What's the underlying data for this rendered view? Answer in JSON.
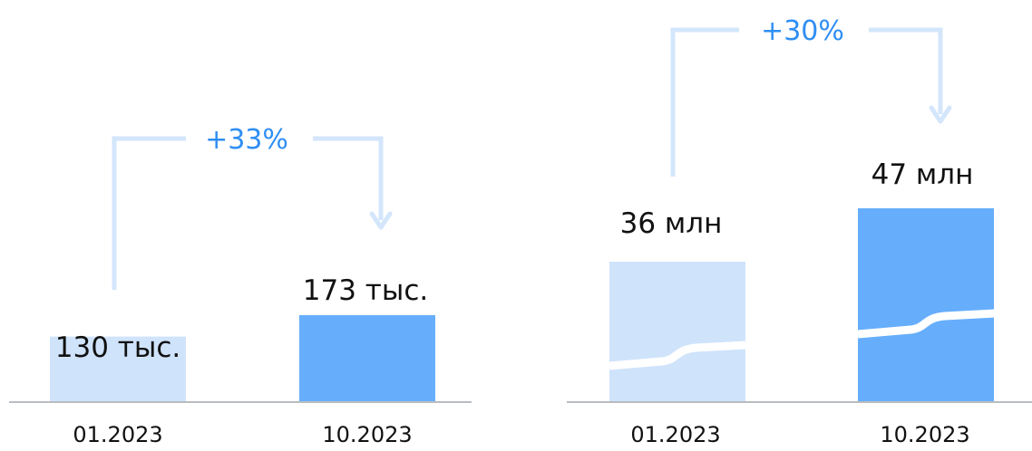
{
  "chart_data": [
    {
      "type": "bar",
      "categories": [
        "01.2023",
        "10.2023"
      ],
      "values": [
        130,
        173
      ],
      "value_labels": [
        "130 тыс.",
        "173 тыс."
      ],
      "change_label": "+33%",
      "axis_break": false
    },
    {
      "type": "bar",
      "categories": [
        "01.2023",
        "10.2023"
      ],
      "values": [
        36,
        47
      ],
      "value_labels": [
        "36 млн",
        "47 млн"
      ],
      "change_label": "+30%",
      "axis_break": true
    }
  ],
  "colors": {
    "bar_light": "#cfe3fb",
    "bar_dark": "#66aefc",
    "arrow": "#d3e6fb",
    "change_text": "#2f8ef3",
    "axis": "#b9bcc0",
    "text": "#111111"
  }
}
